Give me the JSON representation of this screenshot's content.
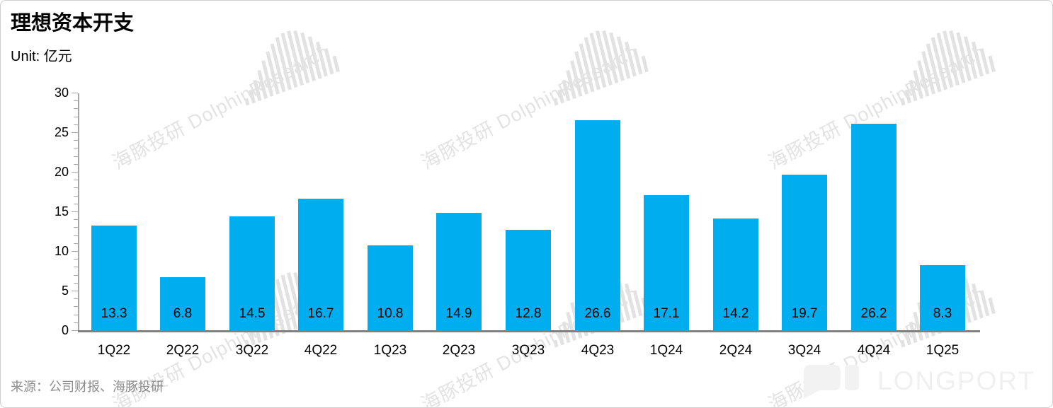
{
  "page": {
    "title": "理想资本开支",
    "unit_label": "Unit: 亿元",
    "source": "来源：公司财报、海豚投研"
  },
  "watermark": {
    "text": "海豚投研 DolphinResearch",
    "logo": "dolphin-bars-logo"
  },
  "branding": {
    "longport_label": "LONGPORT",
    "longport_icon": "speech-bubble-icon"
  },
  "colors": {
    "bar": "#00AEEF",
    "axis_line": "#a6a6a6",
    "baseline": "#808080",
    "text": "#000000",
    "source_text": "#8c8c8c",
    "watermark": "#e3e3e3",
    "longport": "#f0f0f0",
    "page_border": "#cfcfcf",
    "background": "#ffffff"
  },
  "chart_data": {
    "type": "bar",
    "title": "理想资本开支",
    "xlabel": "",
    "ylabel": "Unit: 亿元",
    "categories": [
      "1Q22",
      "2Q22",
      "3Q22",
      "4Q22",
      "1Q23",
      "2Q23",
      "3Q23",
      "4Q23",
      "1Q24",
      "2Q24",
      "3Q24",
      "4Q24",
      "1Q25"
    ],
    "values": [
      13.3,
      6.8,
      14.5,
      16.7,
      10.8,
      14.9,
      12.8,
      26.6,
      17.1,
      14.2,
      19.7,
      26.2,
      8.3
    ],
    "ylim": [
      0,
      30
    ],
    "ytick_step": 5,
    "minor_tick_step": 1,
    "yticks": [
      0,
      5,
      10,
      15,
      20,
      25,
      30
    ],
    "grid": false,
    "legend": null,
    "bar_color": "#00AEEF",
    "value_label_position": "inside-bottom"
  }
}
